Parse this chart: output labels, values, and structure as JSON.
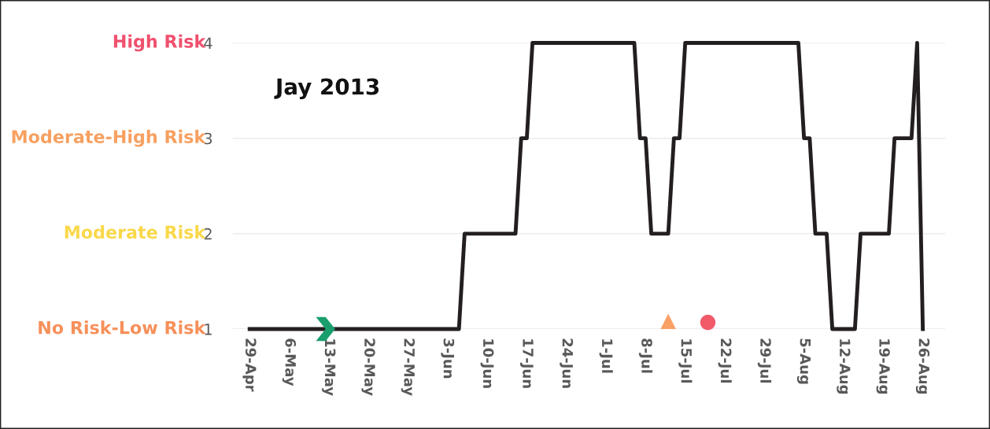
{
  "chart_data": {
    "type": "line",
    "title": "Jay 2013",
    "series": [
      {
        "color": "#231f20",
        "marker": "none",
        "line_style": "solid",
        "x": [
          "2013-04-29",
          "2013-06-05",
          "2013-06-06",
          "2013-06-15",
          "2013-06-16",
          "2013-06-17",
          "2013-06-18",
          "2013-07-06",
          "2013-07-07",
          "2013-07-08",
          "2013-07-09",
          "2013-07-12",
          "2013-07-13",
          "2013-07-14",
          "2013-07-15",
          "2013-08-04",
          "2013-08-05",
          "2013-08-06",
          "2013-08-07",
          "2013-08-09",
          "2013-08-10",
          "2013-08-14",
          "2013-08-15",
          "2013-08-20",
          "2013-08-21",
          "2013-08-24",
          "2013-08-25",
          "2013-08-26"
        ],
        "values": [
          1,
          1,
          2,
          2,
          3,
          3,
          4,
          4,
          3,
          3,
          2,
          2,
          3,
          3,
          4,
          4,
          3,
          3,
          2,
          2,
          1,
          1,
          2,
          2,
          3,
          3,
          4,
          1
        ]
      },
      {
        "type": "scatter",
        "color": "#1a9e6e",
        "x": [
          "2013-05-12"
        ],
        "values": [
          1
        ]
      },
      {
        "type": "scatter",
        "color": "#f9a065",
        "marker": "triangle",
        "x": [
          "2013-07-12"
        ],
        "values": [
          1.08
        ]
      },
      {
        "type": "scatter",
        "color": "#f25a6a",
        "marker": "circle",
        "x": [
          "2013-07-19"
        ],
        "values": [
          1.07
        ]
      }
    ],
    "xlim": [
      "2013-04-26",
      "2013-08-30"
    ],
    "xticks": [
      {
        "value": "2013-04-29",
        "label": "29-Apr"
      },
      {
        "value": "2013-05-06",
        "label": "6-May"
      },
      {
        "value": "2013-05-13",
        "label": "13-May"
      },
      {
        "value": "2013-05-20",
        "label": "20-May"
      },
      {
        "value": "2013-05-27",
        "label": "27-May"
      },
      {
        "value": "2013-06-03",
        "label": "3-Jun"
      },
      {
        "value": "2013-06-10",
        "label": "10-Jun"
      },
      {
        "value": "2013-06-17",
        "label": "17-Jun"
      },
      {
        "value": "2013-06-24",
        "label": "24-Jun"
      },
      {
        "value": "2013-07-01",
        "label": "1-Jul"
      },
      {
        "value": "2013-07-08",
        "label": "8-Jul"
      },
      {
        "value": "2013-07-15",
        "label": "15-Jul"
      },
      {
        "value": "2013-07-22",
        "label": "22-Jul"
      },
      {
        "value": "2013-07-29",
        "label": "29-Jul"
      },
      {
        "value": "2013-08-05",
        "label": "5-Aug"
      },
      {
        "value": "2013-08-12",
        "label": "12-Aug"
      },
      {
        "value": "2013-08-19",
        "label": "19-Aug"
      },
      {
        "value": "2013-08-26",
        "label": "26-Aug"
      }
    ],
    "ylim": [
      1,
      4
    ],
    "yticks": [
      1,
      2,
      3,
      4
    ],
    "grid": "y",
    "annotations": [
      "High Risk",
      "Moderate-High Risk",
      "Moderate Risk",
      "No Risk-Low Risk"
    ]
  }
}
